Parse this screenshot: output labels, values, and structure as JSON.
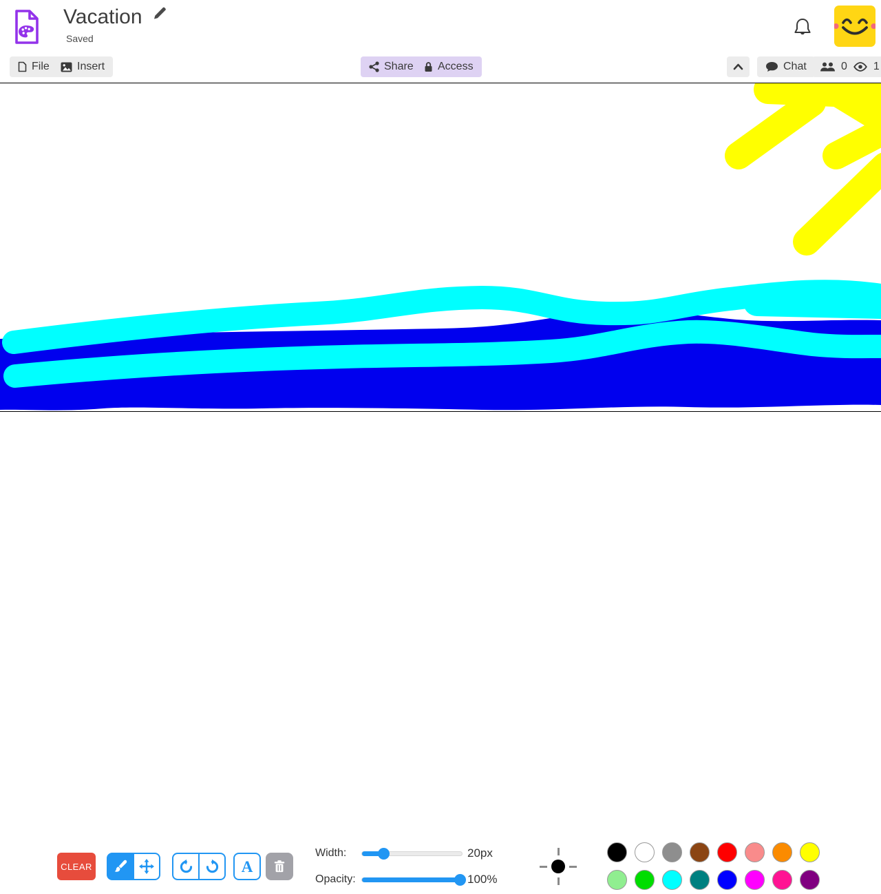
{
  "header": {
    "title": "Vacation",
    "status": "Saved"
  },
  "menubar": {
    "file_label": "File",
    "insert_label": "Insert",
    "share_label": "Share",
    "access_label": "Access",
    "chat_label": "Chat",
    "collaborators_count": "0",
    "viewers_count": "1"
  },
  "tools": {
    "clear_label": "CLEAR",
    "text_tool_label": "A",
    "active_tool": "brush",
    "brush_preview": {
      "color": "#000000",
      "size": "20px"
    }
  },
  "sliders": {
    "width_label": "Width:",
    "width_value": "20px",
    "opacity_label": "Opacity:",
    "opacity_value": "100%"
  },
  "palette": {
    "colors": [
      {
        "name": "black",
        "hex": "#000000"
      },
      {
        "name": "white",
        "hex": "#ffffff"
      },
      {
        "name": "gray",
        "hex": "#8e8e8e"
      },
      {
        "name": "brown",
        "hex": "#8b4513"
      },
      {
        "name": "red",
        "hex": "#ff0000"
      },
      {
        "name": "salmon",
        "hex": "#f98b8b"
      },
      {
        "name": "orange",
        "hex": "#fb8b00"
      },
      {
        "name": "yellow",
        "hex": "#ffff00"
      },
      {
        "name": "light-green",
        "hex": "#90ee90"
      },
      {
        "name": "green",
        "hex": "#00dd00"
      },
      {
        "name": "cyan",
        "hex": "#00ffff"
      },
      {
        "name": "teal",
        "hex": "#008080"
      },
      {
        "name": "blue",
        "hex": "#0000ff"
      },
      {
        "name": "magenta",
        "hex": "#ff00ff"
      },
      {
        "name": "pink",
        "hex": "#ff1493"
      },
      {
        "name": "purple",
        "hex": "#800080"
      }
    ]
  },
  "canvas": {
    "colors": {
      "sun": "#ffff00",
      "sea": "#0000ee",
      "surf": "#00ffff"
    }
  },
  "theme": {
    "accent_blue": "#2196f3",
    "clear_red": "#e74c3c",
    "lavender": "#ded2f3",
    "avatar_yellow": "#ffd614",
    "app_purple": "#9333ea"
  }
}
